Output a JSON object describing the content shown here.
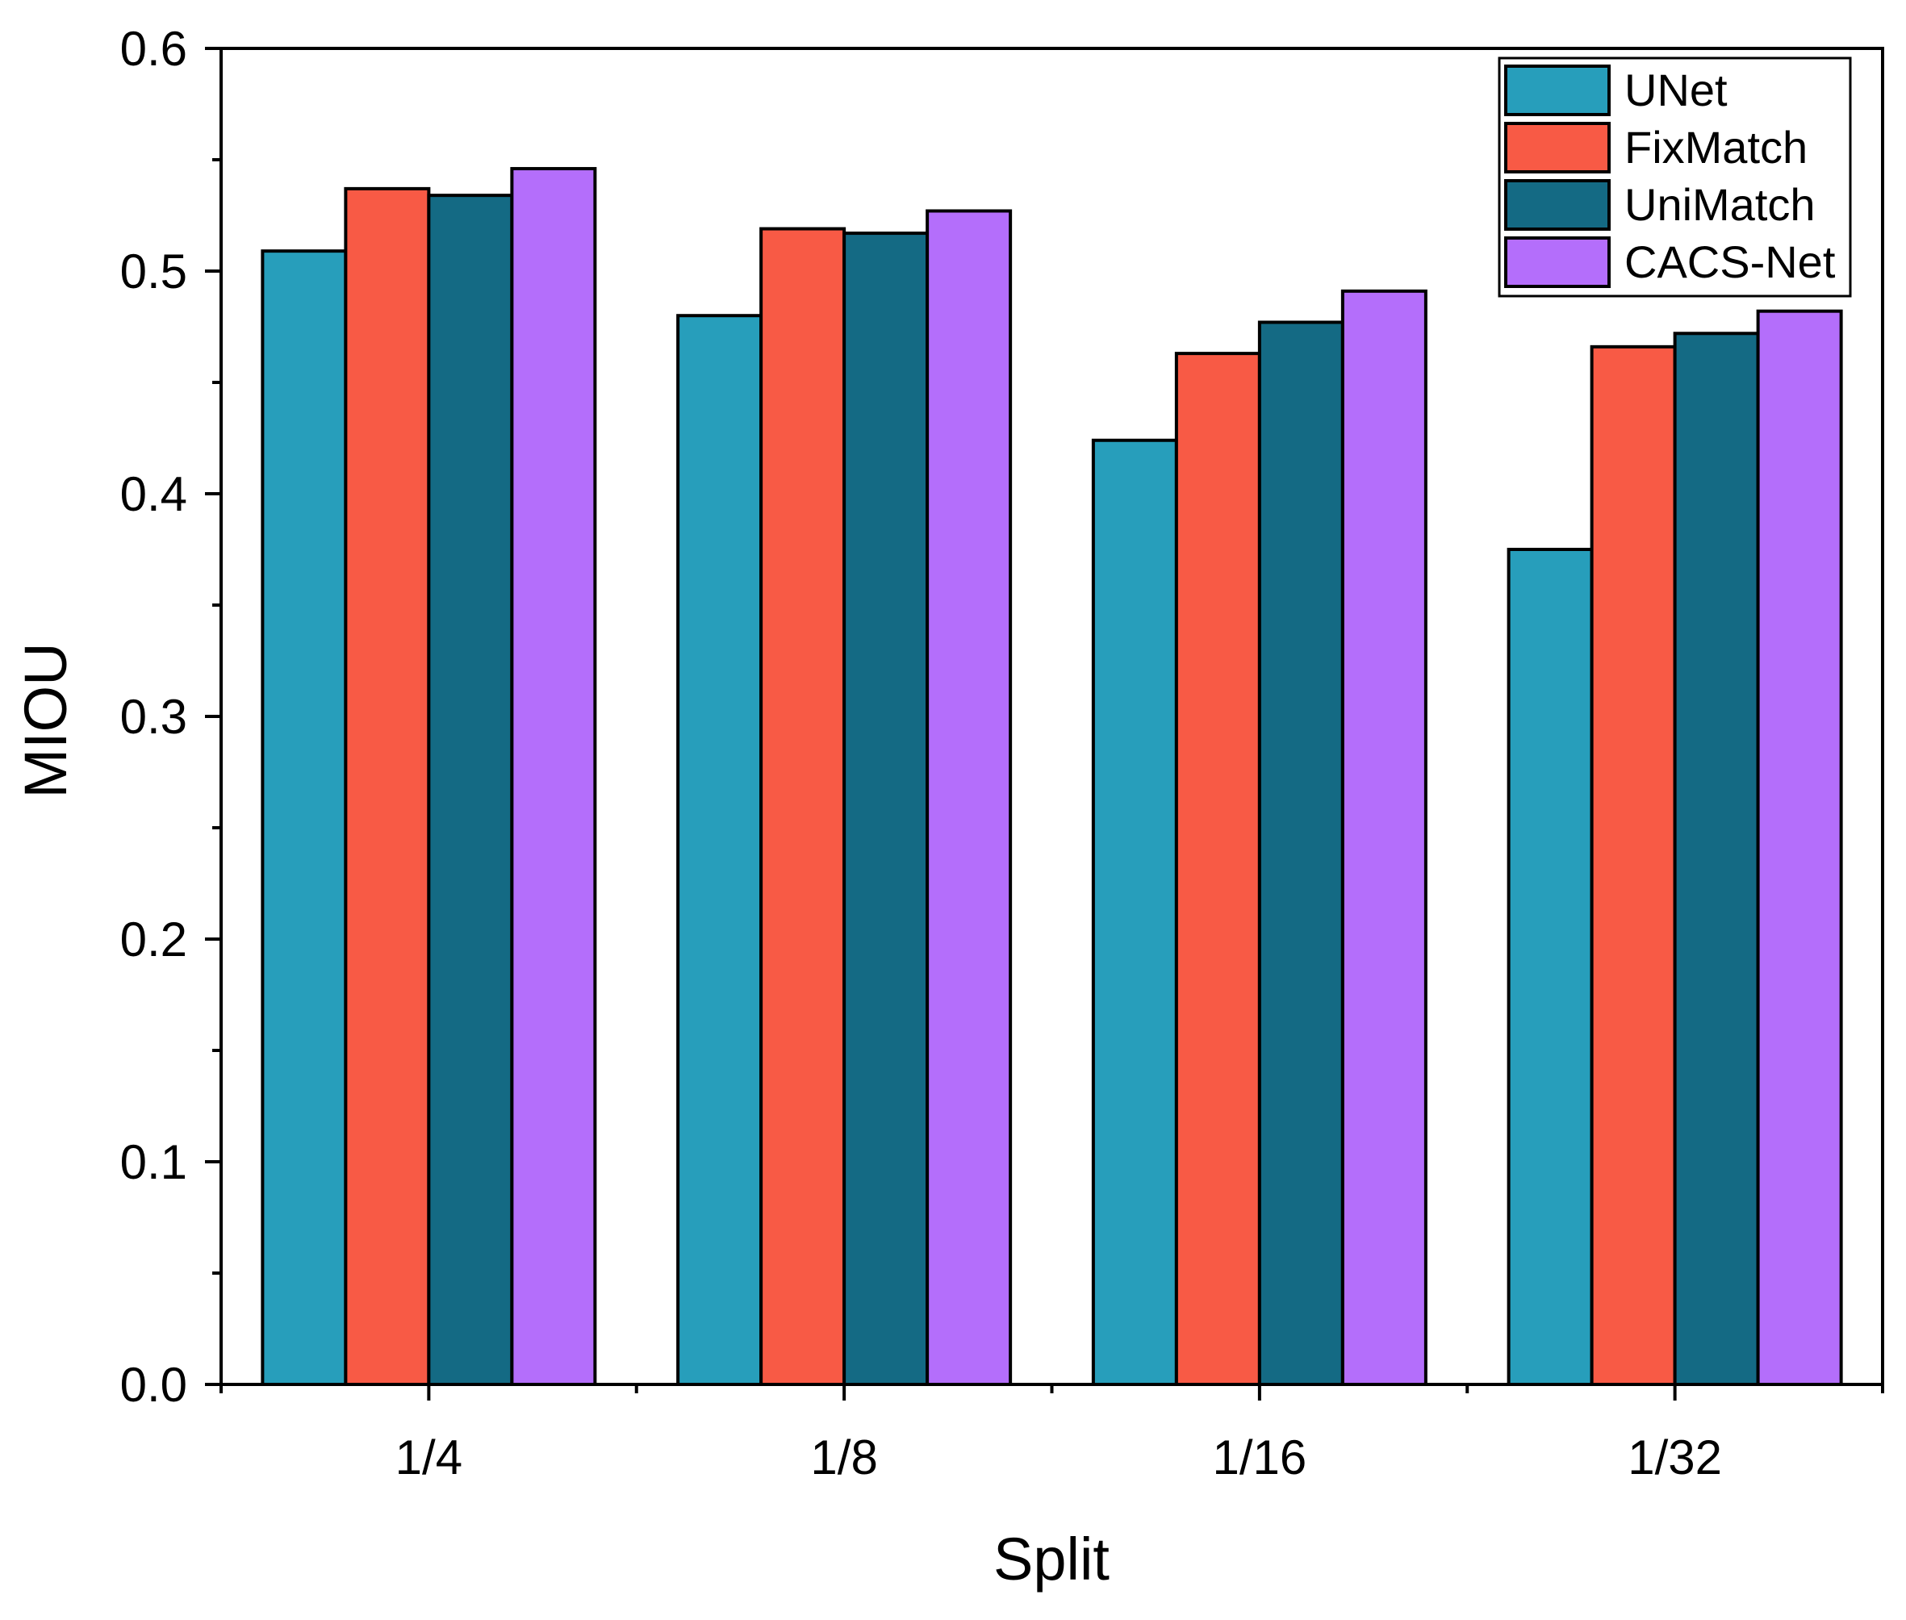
{
  "chart_data": {
    "type": "bar",
    "title": "",
    "xlabel": "Split",
    "ylabel": "MIOU",
    "categories": [
      "1/4",
      "1/8",
      "1/16",
      "1/32"
    ],
    "series": [
      {
        "name": "UNet",
        "color": "#279EBB",
        "values": [
          0.509,
          0.48,
          0.424,
          0.375
        ]
      },
      {
        "name": "FixMatch",
        "color": "#F85A45",
        "values": [
          0.537,
          0.519,
          0.463,
          0.466
        ]
      },
      {
        "name": "UniMatch",
        "color": "#146A84",
        "values": [
          0.534,
          0.517,
          0.477,
          0.472
        ]
      },
      {
        "name": "CACS-Net",
        "color": "#B46EFB",
        "values": [
          0.546,
          0.527,
          0.491,
          0.482
        ]
      }
    ],
    "ylim": [
      0,
      0.6
    ],
    "yticks": [
      "0.0",
      "0.1",
      "0.2",
      "0.3",
      "0.4",
      "0.5",
      "0.6"
    ],
    "ytick_values": [
      0,
      0.1,
      0.2,
      0.3,
      0.4,
      0.5,
      0.6
    ],
    "legend_position": "top-right",
    "grid": false
  }
}
